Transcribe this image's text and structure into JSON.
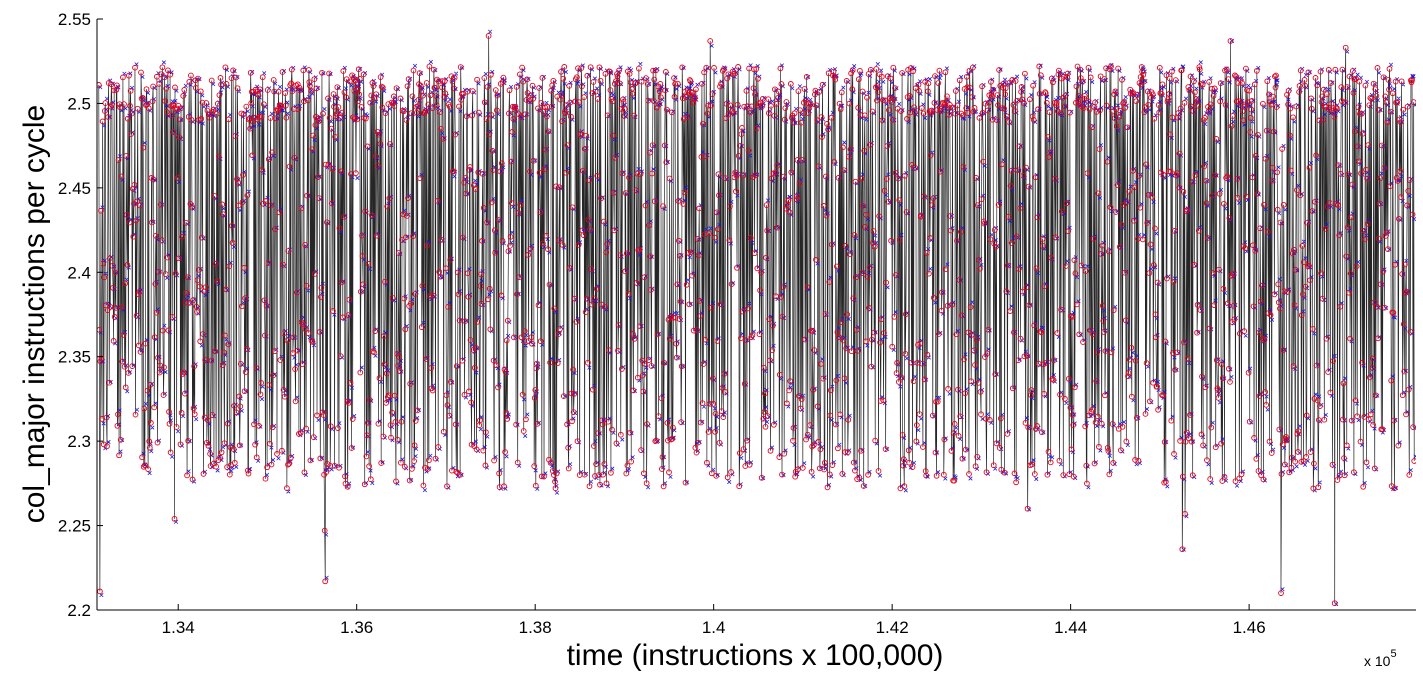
{
  "chart_data": {
    "type": "line",
    "xlabel": "time (instructions x 100,000)",
    "ylabel": "col_major instructions per cycle",
    "x_exponent_label": "x 10",
    "x_exponent_power": "5",
    "xlim": [
      1.3309,
      1.4787
    ],
    "ylim": [
      2.2,
      2.55
    ],
    "x_ticks": [
      {
        "value": 1.34,
        "label": "1.34"
      },
      {
        "value": 1.36,
        "label": "1.36"
      },
      {
        "value": 1.38,
        "label": "1.38"
      },
      {
        "value": 1.4,
        "label": "1.4"
      },
      {
        "value": 1.42,
        "label": "1.42"
      },
      {
        "value": 1.44,
        "label": "1.44"
      },
      {
        "value": 1.46,
        "label": "1.46"
      }
    ],
    "y_ticks": [
      {
        "value": 2.2,
        "label": "2.2"
      },
      {
        "value": 2.25,
        "label": "2.25"
      },
      {
        "value": 2.3,
        "label": "2.3"
      },
      {
        "value": 2.35,
        "label": "2.35"
      },
      {
        "value": 2.4,
        "label": "2.4"
      },
      {
        "value": 2.45,
        "label": "2.45"
      },
      {
        "value": 2.5,
        "label": "2.5"
      },
      {
        "value": 2.55,
        "label": "2.55"
      }
    ],
    "grid": false,
    "series": [
      {
        "marker": "o",
        "color": "#e8001c"
      },
      {
        "marker": "x",
        "color": "#1a1ad6"
      },
      {
        "marker": "line",
        "color": "#000000"
      }
    ],
    "notable_points": [
      {
        "x": 1.3312,
        "y": 2.211
      },
      {
        "x": 1.3396,
        "y": 2.254
      },
      {
        "x": 1.3564,
        "y": 2.247
      },
      {
        "x": 1.3565,
        "y": 2.217
      },
      {
        "x": 1.3748,
        "y": 2.54
      },
      {
        "x": 1.3996,
        "y": 2.537
      },
      {
        "x": 1.4352,
        "y": 2.26
      },
      {
        "x": 1.4525,
        "y": 2.236
      },
      {
        "x": 1.4528,
        "y": 2.257
      },
      {
        "x": 1.4579,
        "y": 2.537
      },
      {
        "x": 1.4636,
        "y": 2.21
      },
      {
        "x": 1.4696,
        "y": 2.204
      },
      {
        "x": 1.4708,
        "y": 2.533
      }
    ]
  }
}
